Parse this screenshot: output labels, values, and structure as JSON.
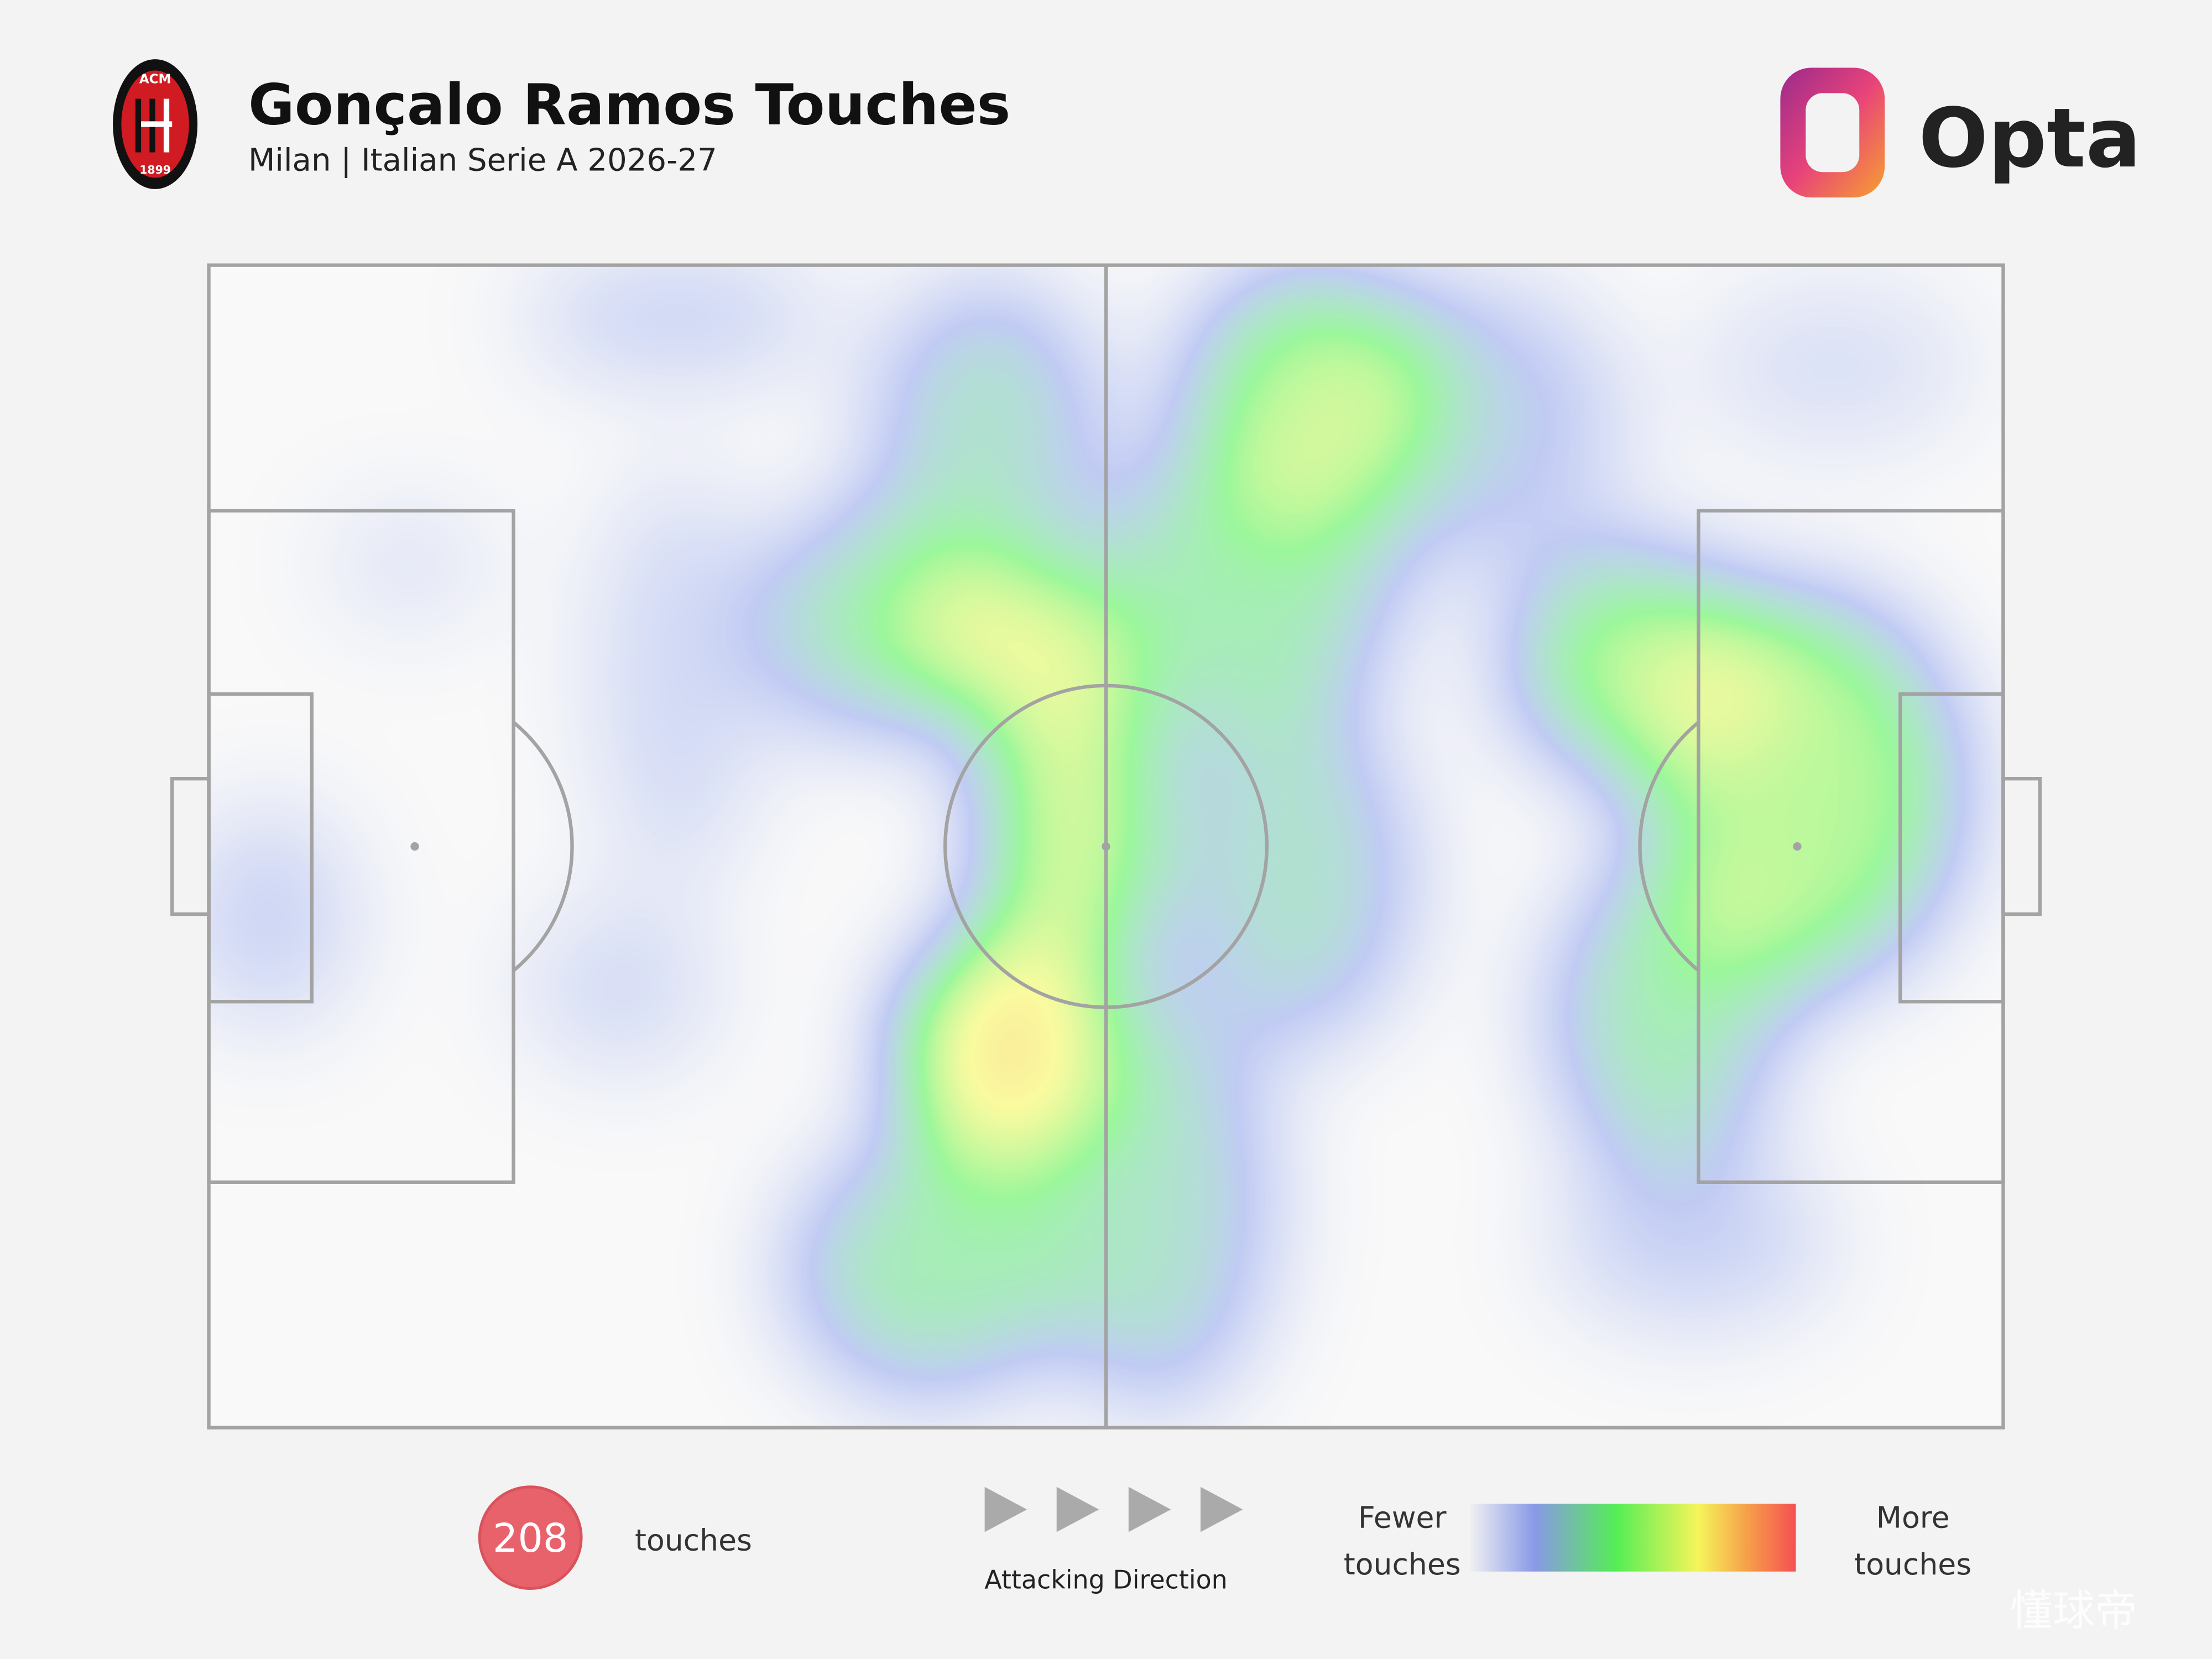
{
  "header": {
    "title": "Gonçalo Ramos Touches",
    "subtitle": "Milan | Italian Serie A 2026-27",
    "crest_top": "ACM",
    "crest_bottom": "1899",
    "brand": "Opta"
  },
  "footer": {
    "count": 208,
    "count_label": "touches",
    "direction_label": "Attacking Direction",
    "legend_low": [
      "Fewer",
      "touches"
    ],
    "legend_high": [
      "More",
      "touches"
    ],
    "watermark": "懂球帝"
  }
}
